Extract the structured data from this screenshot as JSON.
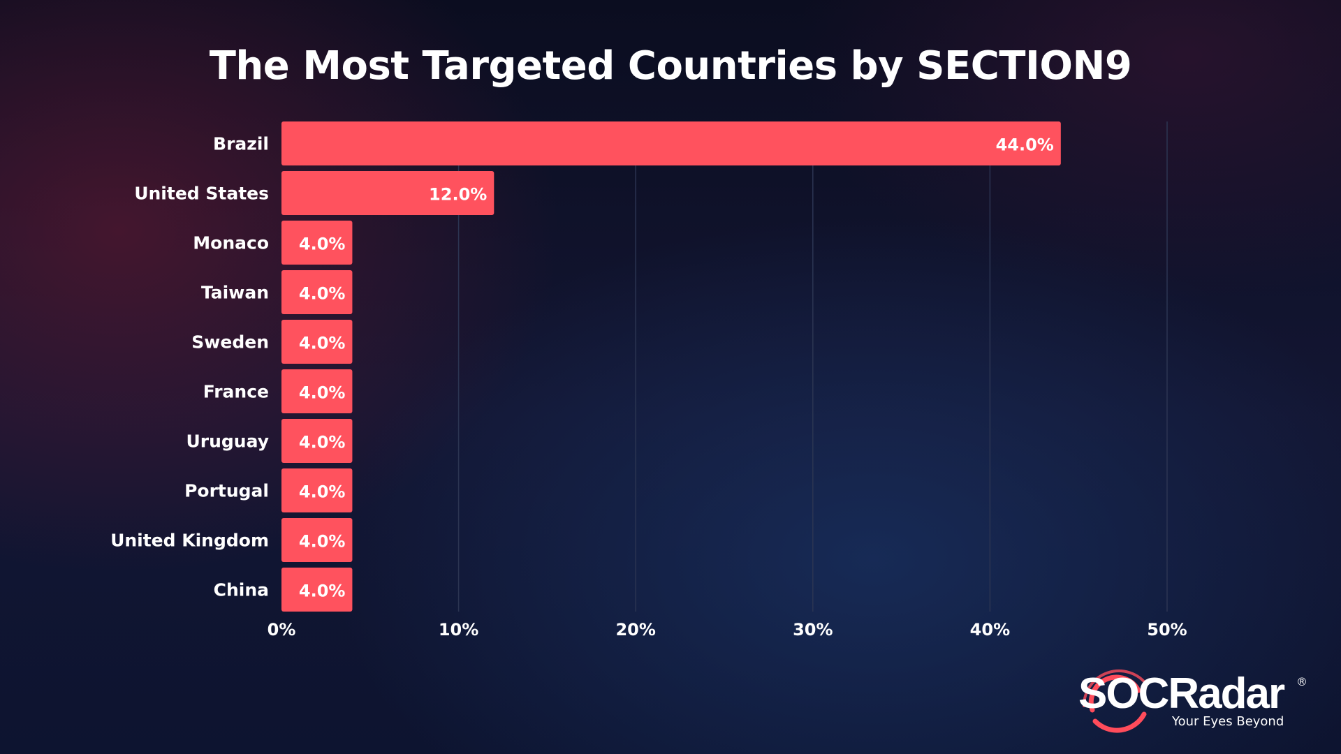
{
  "chart_data": {
    "type": "bar",
    "orientation": "horizontal",
    "title": "The Most Targeted Countries by SECTION9",
    "categories": [
      "Brazil",
      "United States",
      "Monaco",
      "Taiwan",
      "Sweden",
      "France",
      "Uruguay",
      "Portugal",
      "United Kingdom",
      "China"
    ],
    "values": [
      44.0,
      12.0,
      4.0,
      4.0,
      4.0,
      4.0,
      4.0,
      4.0,
      4.0,
      4.0
    ],
    "value_labels": [
      "44.0%",
      "12.0%",
      "4.0%",
      "4.0%",
      "4.0%",
      "4.0%",
      "4.0%",
      "4.0%",
      "4.0%",
      "4.0%"
    ],
    "xlim": [
      0,
      50
    ],
    "xticks": [
      0,
      10,
      20,
      30,
      40,
      50
    ],
    "xtick_labels": [
      "0%",
      "10%",
      "20%",
      "30%",
      "40%",
      "50%"
    ],
    "xlabel": "",
    "ylabel": "",
    "grid": "vertical",
    "bar_color": "#ff525e",
    "grid_color": "#2c3552"
  },
  "branding": {
    "logo_text": "SOCRadar",
    "registered_mark": "®",
    "tagline": "Your Eyes Beyond",
    "accent_color": "#ff4c5b"
  }
}
